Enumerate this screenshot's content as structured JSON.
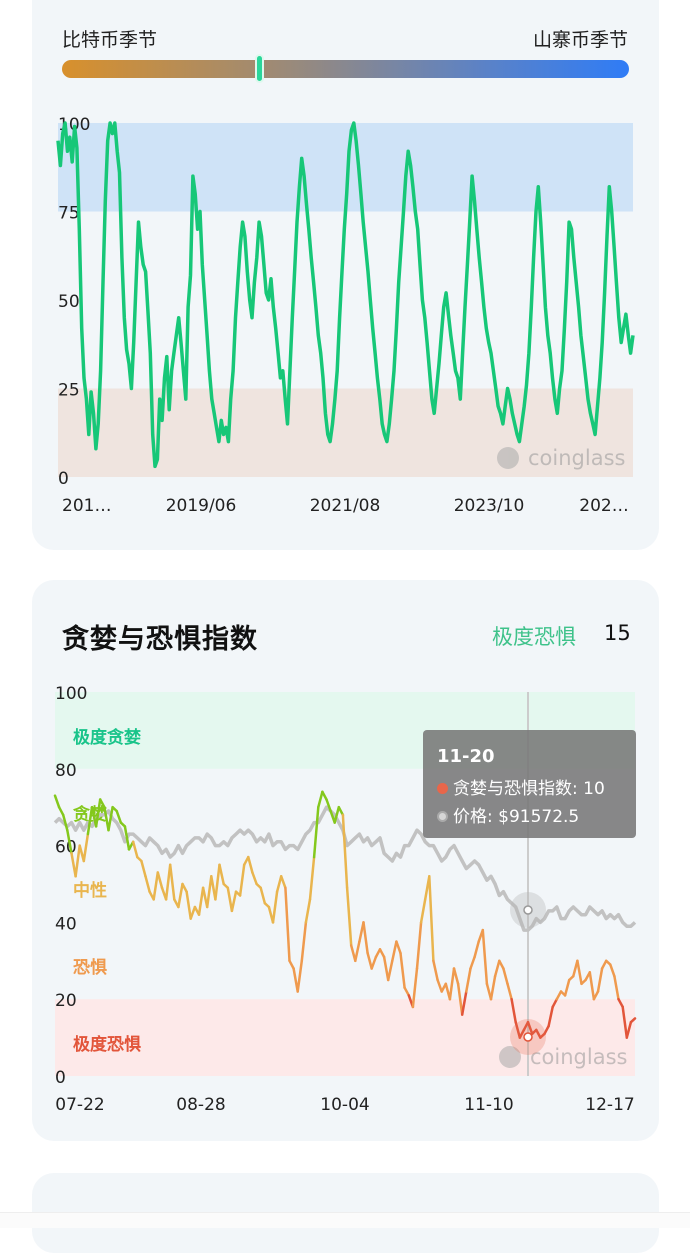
{
  "season": {
    "left_label": "比特币季节",
    "right_label": "山寨币季节",
    "position": 0.35
  },
  "altcoin_chart": {
    "watermark": "coinglass",
    "chart_data": {
      "type": "line",
      "title": "",
      "x_ticks": [
        "201…",
        "2019/06",
        "2021/08",
        "2023/10",
        "202…"
      ],
      "y_ticks": [
        "100",
        "75",
        "50",
        "25",
        "0"
      ],
      "ylim": [
        0,
        100
      ],
      "bands": [
        {
          "from": 75,
          "to": 100,
          "color": "#cfe3f7"
        },
        {
          "from": 0,
          "to": 25,
          "color": "#efe4df"
        }
      ],
      "series": [
        {
          "color": "#17c778",
          "values": [
            95,
            88,
            97,
            100,
            92,
            96,
            89,
            99,
            93,
            70,
            42,
            28,
            22,
            12,
            24,
            18,
            8,
            15,
            30,
            55,
            78,
            95,
            100,
            97,
            100,
            92,
            86,
            62,
            45,
            36,
            32,
            25,
            38,
            55,
            72,
            65,
            60,
            58,
            47,
            35,
            12,
            3,
            5,
            22,
            16,
            28,
            34,
            19,
            30,
            35,
            40,
            45,
            38,
            30,
            22,
            48,
            57,
            85,
            80,
            70,
            75,
            60,
            50,
            40,
            30,
            22,
            18,
            14,
            10,
            16,
            12,
            14,
            10,
            22,
            30,
            45,
            55,
            65,
            72,
            68,
            58,
            50,
            45,
            55,
            62,
            72,
            68,
            60,
            52,
            50,
            56,
            48,
            42,
            35,
            28,
            30,
            22,
            15,
            30,
            45,
            58,
            72,
            82,
            90,
            85,
            77,
            70,
            62,
            55,
            48,
            40,
            35,
            28,
            18,
            12,
            10,
            15,
            22,
            30,
            45,
            58,
            70,
            80,
            92,
            98,
            100,
            95,
            88,
            80,
            72,
            65,
            58,
            50,
            42,
            35,
            28,
            22,
            15,
            12,
            10,
            15,
            22,
            30,
            42,
            55,
            65,
            75,
            85,
            92,
            88,
            82,
            75,
            70,
            60,
            50,
            45,
            38,
            30,
            22,
            18,
            25,
            32,
            40,
            48,
            52,
            46,
            40,
            35,
            30,
            28,
            22,
            35,
            48,
            60,
            72,
            85,
            78,
            70,
            62,
            55,
            48,
            42,
            38,
            35,
            30,
            25,
            20,
            18,
            15,
            20,
            25,
            22,
            18,
            15,
            12,
            10,
            15,
            20,
            26,
            35,
            48,
            62,
            75,
            82,
            72,
            60,
            48,
            40,
            35,
            28,
            22,
            18,
            25,
            30,
            42,
            55,
            72,
            70,
            62,
            55,
            48,
            40,
            34,
            28,
            22,
            18,
            15,
            12,
            20,
            28,
            38,
            52,
            68,
            82,
            75,
            65,
            55,
            45,
            38,
            42,
            46,
            40,
            35,
            40
          ]
        }
      ]
    }
  },
  "greed_fear": {
    "title": "贪婪与恐惧指数",
    "status": "极度恐惧",
    "value": "15",
    "watermark": "coinglass",
    "zones": [
      "极度贪婪",
      "贪婪",
      "中性",
      "恐惧",
      "极度恐惧"
    ],
    "zone_colors": {
      "extreme_greed": "#19c48a",
      "greed": "#84c81d",
      "neutral": "#e9b54e",
      "fear": "#ef9a4e",
      "extreme_fear": "#e2553a"
    },
    "tooltip": {
      "date": "11-20",
      "index_line": "贪婪与恐惧指数: 10",
      "price_line": "价格: $91572.5"
    },
    "chart_data": {
      "type": "line",
      "x_ticks": [
        "07-22",
        "08-28",
        "10-04",
        "11-10",
        "12-17"
      ],
      "y_ticks": [
        "100",
        "80",
        "60",
        "40",
        "20",
        "0"
      ],
      "ylim": [
        0,
        100
      ],
      "series": [
        {
          "name": "贪婪与恐惧指数",
          "values": [
            73,
            70,
            68,
            64,
            58,
            52,
            60,
            56,
            63,
            70,
            65,
            72,
            70,
            64,
            70,
            69,
            66,
            65,
            59,
            61,
            57,
            56,
            52,
            48,
            46,
            53,
            49,
            46,
            55,
            46,
            44,
            50,
            48,
            41,
            44,
            42,
            49,
            44,
            52,
            46,
            55,
            50,
            49,
            43,
            48,
            47,
            55,
            57,
            53,
            50,
            49,
            45,
            44,
            40,
            48,
            52,
            49,
            30,
            28,
            22,
            30,
            40,
            46,
            57,
            70,
            74,
            72,
            69,
            66,
            70,
            68,
            49,
            34,
            30,
            35,
            40,
            32,
            28,
            31,
            33,
            31,
            25,
            30,
            35,
            32,
            23,
            21,
            18,
            28,
            40,
            46,
            52,
            30,
            25,
            22,
            24,
            20,
            28,
            24,
            16,
            22,
            28,
            31,
            35,
            38,
            24,
            20,
            26,
            30,
            28,
            24,
            20,
            14,
            10,
            12,
            14,
            11,
            12,
            10,
            11,
            13,
            18,
            20,
            22,
            21,
            25,
            26,
            30,
            24,
            25,
            27,
            20,
            22,
            28,
            30,
            29,
            26,
            20,
            18,
            10,
            14,
            15
          ]
        },
        {
          "name": "价格",
          "values": [
            66,
            67,
            66,
            65,
            66,
            64,
            66,
            64,
            66,
            65,
            67,
            68,
            68,
            69,
            67,
            66,
            64,
            61,
            63,
            63,
            62,
            61,
            60,
            62,
            61,
            60,
            58,
            59,
            57,
            58,
            60,
            58,
            60,
            61,
            62,
            62,
            61,
            63,
            62,
            60,
            60,
            61,
            60,
            62,
            63,
            64,
            63,
            64,
            63,
            61,
            62,
            61,
            63,
            60,
            61,
            61,
            59,
            60,
            60,
            59,
            61,
            63,
            64,
            66,
            66,
            68,
            70,
            69,
            68,
            66,
            64,
            60,
            61,
            62,
            63,
            61,
            62,
            60,
            61,
            62,
            58,
            57,
            56,
            58,
            57,
            60,
            60,
            62,
            64,
            63,
            61,
            60,
            60,
            58,
            56,
            57,
            59,
            60,
            58,
            56,
            54,
            55,
            56,
            55,
            53,
            51,
            52,
            50,
            47,
            48,
            46,
            45,
            44,
            41,
            38,
            38,
            39,
            41,
            40,
            41,
            43,
            43,
            44,
            41,
            41,
            43,
            44,
            43,
            42,
            42,
            44,
            43,
            42,
            43,
            41,
            42,
            41,
            42,
            40,
            39,
            39,
            40
          ]
        }
      ]
    }
  }
}
